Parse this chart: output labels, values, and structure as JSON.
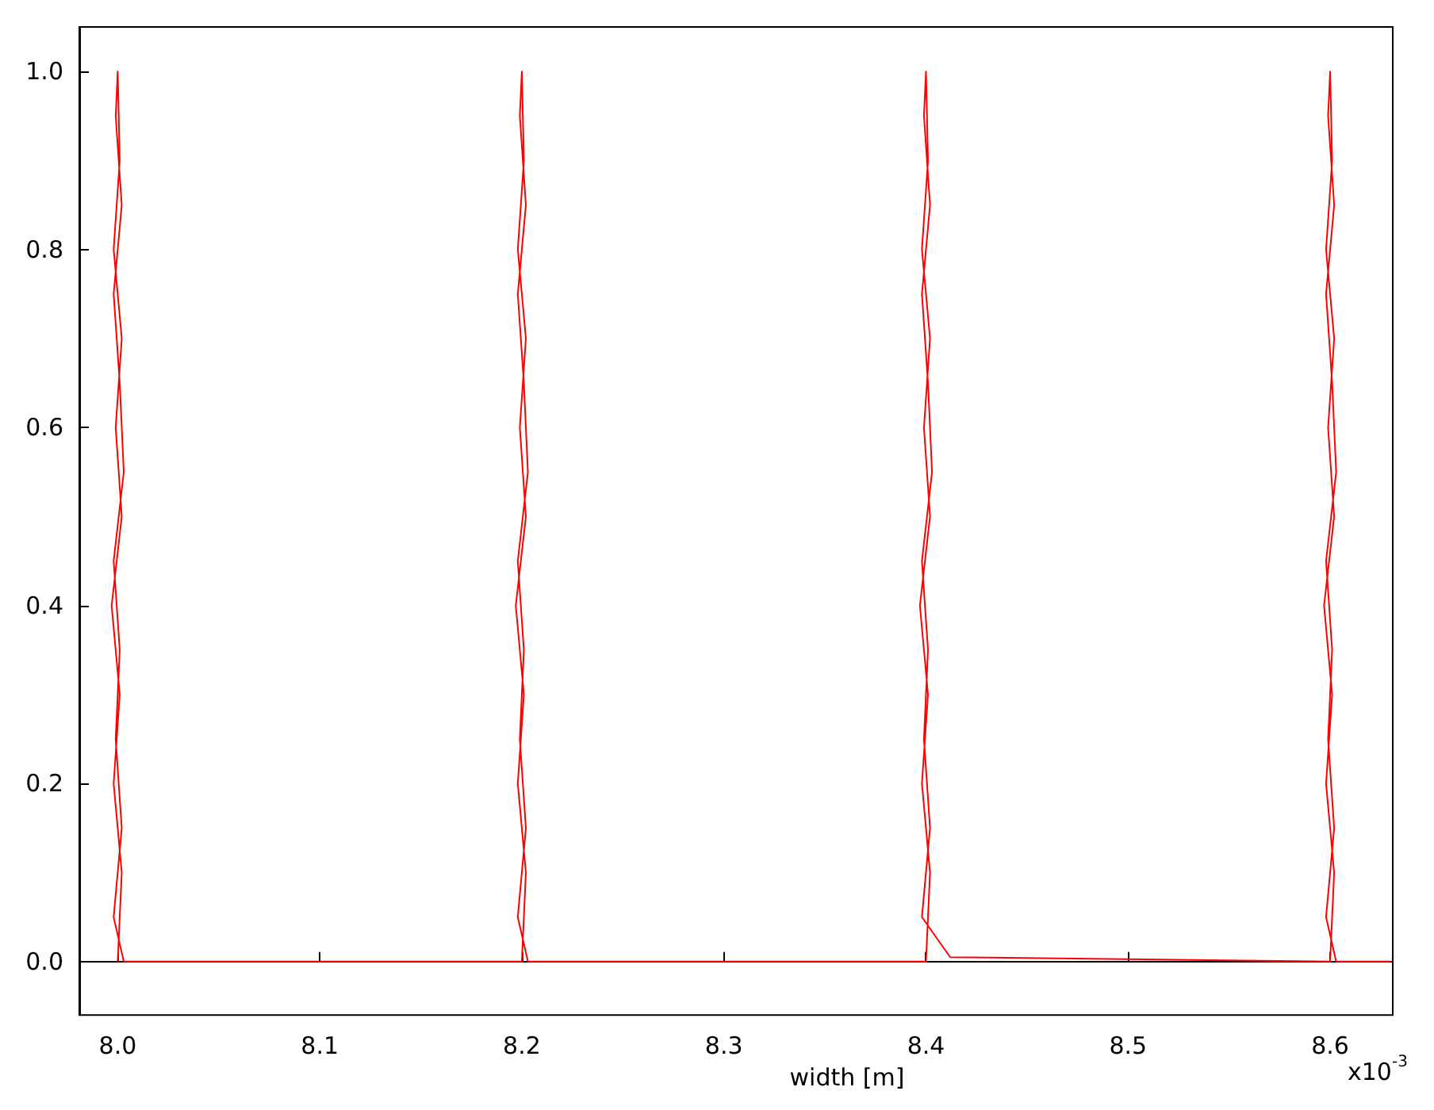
{
  "chart_data": {
    "type": "line",
    "xlabel": "width [m]",
    "annotations": [
      "x10$^{-3}$"
    ],
    "xlim": [
      7.981,
      8.631
    ],
    "xticks": [
      {
        "value": 8.0,
        "label": "8.0"
      },
      8.1,
      8.2,
      8.3,
      8.4,
      8.5,
      8.6
    ],
    "ylim": [
      -0.06,
      1.05
    ],
    "yticks": [
      {
        "value": 0,
        "label": "0.0"
      },
      0.2,
      0.4,
      0.6,
      0.8,
      {
        "value": 1,
        "label": "1.0"
      }
    ],
    "marker": "none",
    "line_style": "solid",
    "series": [
      {
        "color": "#ff0000",
        "x": [
          8.0,
          8.002,
          7.998,
          8.001,
          7.997,
          8.002,
          7.999,
          8.002,
          7.998,
          8.001,
          8.0,
          7.999,
          8.002,
          7.998,
          8.001,
          8.003,
          7.998,
          8.001,
          7.999,
          8.002,
          7.998,
          8.003,
          8.2,
          8.202,
          8.198,
          8.201,
          8.197,
          8.202,
          8.199,
          8.202,
          8.198,
          8.201,
          8.2,
          8.199,
          8.202,
          8.198,
          8.201,
          8.203,
          8.198,
          8.201,
          8.199,
          8.202,
          8.198,
          8.203,
          8.4,
          8.402,
          8.398,
          8.401,
          8.397,
          8.402,
          8.399,
          8.402,
          8.398,
          8.401,
          8.4,
          8.399,
          8.402,
          8.398,
          8.401,
          8.403,
          8.398,
          8.401,
          8.399,
          8.402,
          8.398,
          8.412,
          8.6,
          8.602,
          8.598,
          8.601,
          8.597,
          8.602,
          8.599,
          8.602,
          8.598,
          8.601,
          8.6,
          8.599,
          8.602,
          8.598,
          8.601,
          8.603,
          8.598,
          8.601,
          8.599,
          8.602,
          8.598,
          8.603,
          8.63
        ],
        "values": [
          0,
          0.1,
          0.2,
          0.3,
          0.4,
          0.5,
          0.6,
          0.7,
          0.8,
          0.9,
          1.0,
          0.95,
          0.85,
          0.75,
          0.65,
          0.55,
          0.45,
          0.35,
          0.25,
          0.15,
          0.05,
          0,
          0,
          0.1,
          0.2,
          0.3,
          0.4,
          0.5,
          0.6,
          0.7,
          0.8,
          0.9,
          1.0,
          0.95,
          0.85,
          0.75,
          0.65,
          0.55,
          0.45,
          0.35,
          0.25,
          0.15,
          0.05,
          0,
          0,
          0.1,
          0.2,
          0.3,
          0.4,
          0.5,
          0.6,
          0.7,
          0.8,
          0.9,
          1.0,
          0.95,
          0.85,
          0.75,
          0.65,
          0.55,
          0.45,
          0.35,
          0.25,
          0.15,
          0.05,
          0.005,
          0,
          0.1,
          0.2,
          0.3,
          0.4,
          0.5,
          0.6,
          0.7,
          0.8,
          0.9,
          1.0,
          0.95,
          0.85,
          0.75,
          0.65,
          0.55,
          0.45,
          0.35,
          0.25,
          0.15,
          0.05,
          0,
          0
        ]
      }
    ]
  }
}
